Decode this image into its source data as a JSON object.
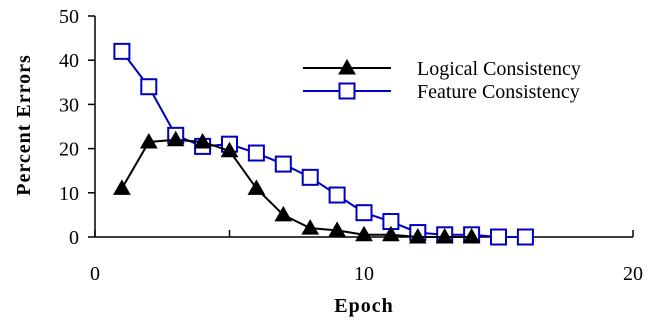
{
  "chart_data": {
    "type": "line",
    "xlabel": "Epoch",
    "ylabel": "Percent Errors",
    "xlim": [
      0,
      20
    ],
    "ylim": [
      0,
      50
    ],
    "xticks": [
      0,
      10,
      20
    ],
    "yticks": [
      0,
      10,
      20,
      30,
      40,
      50
    ],
    "grid": false,
    "legend_position": "top-right",
    "series": [
      {
        "name": "Logical Consistency",
        "color": "#000000",
        "marker": "filled-triangle",
        "x": [
          1,
          2,
          3,
          4,
          5,
          6,
          7,
          8,
          9,
          10,
          11,
          12,
          13,
          14
        ],
        "y": [
          11,
          21.5,
          22,
          21.5,
          19.5,
          11,
          5,
          2,
          1.5,
          0.5,
          0.5,
          0,
          0,
          0
        ]
      },
      {
        "name": "Feature Consistency",
        "color": "#0000c0",
        "marker": "open-square",
        "x": [
          1,
          2,
          3,
          4,
          5,
          6,
          7,
          8,
          9,
          10,
          11,
          12,
          13,
          14,
          15,
          16
        ],
        "y": [
          42,
          34,
          23,
          20.5,
          21,
          19,
          16.5,
          13.5,
          9.5,
          5.5,
          3.5,
          1,
          0.5,
          0.5,
          0,
          0
        ]
      }
    ]
  }
}
